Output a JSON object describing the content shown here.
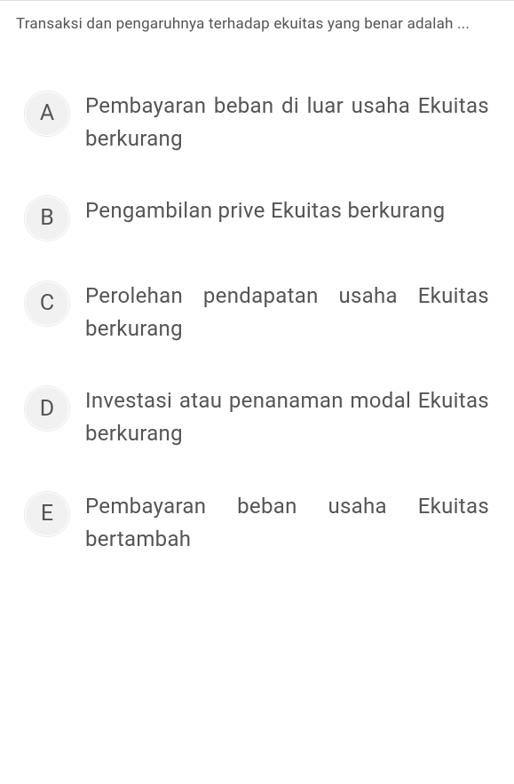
{
  "question": {
    "text": "Transaksi dan pengaruhnya terhadap ekuitas yang benar adalah ...",
    "font_size": 17,
    "color": "#555555"
  },
  "options": [
    {
      "letter": "A",
      "text": "Pembayaran beban di luar usaha Ekuitas berkurang"
    },
    {
      "letter": "B",
      "text": "Pengambilan prive Ekuitas berkurang"
    },
    {
      "letter": "C",
      "text": "Perolehan pendapatan usaha Ekuitas berkurang"
    },
    {
      "letter": "D",
      "text": "Investasi atau penanaman modal Ekuitas berkurang"
    },
    {
      "letter": "E",
      "text": "Pembayaran beban usaha Ekuitas bertambah"
    }
  ],
  "styles": {
    "background_color": "#ffffff",
    "divider_color": "#e0e0e0",
    "option_circle_bg": "#f1f1f1",
    "option_circle_size": 50,
    "option_letter_font_size": 25,
    "option_text_font_size": 24,
    "option_text_color": "#555555"
  }
}
